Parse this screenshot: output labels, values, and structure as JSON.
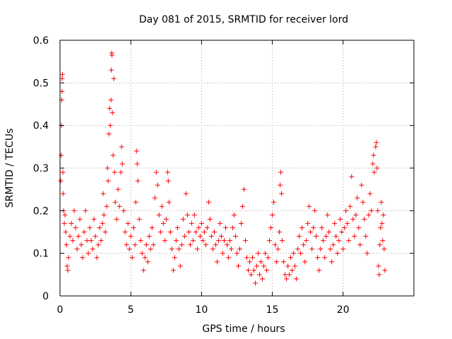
{
  "chart_data": {
    "type": "scatter",
    "title": "Day 081 of 2015, SRMTID for receiver lord",
    "xlabel": "GPS time / hours",
    "ylabel": "SRMTID / TECUs",
    "xlim": [
      0,
      25
    ],
    "ylim": [
      0,
      0.6
    ],
    "x_ticks": [
      0,
      5,
      10,
      15,
      20
    ],
    "y_ticks": [
      0,
      0.1,
      0.2,
      0.3,
      0.4,
      0.5,
      0.6
    ],
    "x_tick_labels": [
      "0",
      "5",
      "10",
      "15",
      "20"
    ],
    "y_tick_labels": [
      "0",
      "0.1",
      "0.2",
      "0.3",
      "0.4",
      "0.5",
      "0.6"
    ],
    "grid": true,
    "marker": "plus",
    "series": [
      {
        "name": "SRMTID",
        "color": "#ff0000",
        "points": [
          [
            0.05,
            0.27
          ],
          [
            0.08,
            0.33
          ],
          [
            0.1,
            0.4
          ],
          [
            0.12,
            0.46
          ],
          [
            0.14,
            0.48
          ],
          [
            0.15,
            0.51
          ],
          [
            0.17,
            0.52
          ],
          [
            0.2,
            0.29
          ],
          [
            0.22,
            0.24
          ],
          [
            0.25,
            0.2
          ],
          [
            0.3,
            0.17
          ],
          [
            0.35,
            0.19
          ],
          [
            0.4,
            0.15
          ],
          [
            0.45,
            0.12
          ],
          [
            0.5,
            0.07
          ],
          [
            0.55,
            0.06
          ],
          [
            0.6,
            0.09
          ],
          [
            0.7,
            0.14
          ],
          [
            0.8,
            0.17
          ],
          [
            0.9,
            0.13
          ],
          [
            1.0,
            0.2
          ],
          [
            1.1,
            0.16
          ],
          [
            1.2,
            0.11
          ],
          [
            1.3,
            0.14
          ],
          [
            1.4,
            0.18
          ],
          [
            1.5,
            0.12
          ],
          [
            1.6,
            0.09
          ],
          [
            1.7,
            0.15
          ],
          [
            1.8,
            0.2
          ],
          [
            1.9,
            0.13
          ],
          [
            2.0,
            0.1
          ],
          [
            2.1,
            0.16
          ],
          [
            2.2,
            0.13
          ],
          [
            2.3,
            0.11
          ],
          [
            2.4,
            0.18
          ],
          [
            2.5,
            0.14
          ],
          [
            2.6,
            0.09
          ],
          [
            2.7,
            0.12
          ],
          [
            2.8,
            0.16
          ],
          [
            2.9,
            0.13
          ],
          [
            3.0,
            0.17
          ],
          [
            3.05,
            0.24
          ],
          [
            3.1,
            0.19
          ],
          [
            3.2,
            0.15
          ],
          [
            3.3,
            0.21
          ],
          [
            3.35,
            0.3
          ],
          [
            3.4,
            0.27
          ],
          [
            3.45,
            0.38
          ],
          [
            3.5,
            0.44
          ],
          [
            3.55,
            0.4
          ],
          [
            3.6,
            0.46
          ],
          [
            3.62,
            0.53
          ],
          [
            3.65,
            0.57
          ],
          [
            3.67,
            0.565
          ],
          [
            3.7,
            0.43
          ],
          [
            3.75,
            0.33
          ],
          [
            3.8,
            0.51
          ],
          [
            3.85,
            0.29
          ],
          [
            3.9,
            0.22
          ],
          [
            4.0,
            0.18
          ],
          [
            4.1,
            0.25
          ],
          [
            4.2,
            0.21
          ],
          [
            4.3,
            0.29
          ],
          [
            4.35,
            0.35
          ],
          [
            4.4,
            0.31
          ],
          [
            4.5,
            0.2
          ],
          [
            4.6,
            0.15
          ],
          [
            4.7,
            0.12
          ],
          [
            4.8,
            0.17
          ],
          [
            4.9,
            0.11
          ],
          [
            5.0,
            0.14
          ],
          [
            5.1,
            0.09
          ],
          [
            5.2,
            0.16
          ],
          [
            5.3,
            0.12
          ],
          [
            5.35,
            0.22
          ],
          [
            5.4,
            0.34
          ],
          [
            5.45,
            0.31
          ],
          [
            5.5,
            0.27
          ],
          [
            5.6,
            0.18
          ],
          [
            5.7,
            0.13
          ],
          [
            5.8,
            0.1
          ],
          [
            5.9,
            0.06
          ],
          [
            6.0,
            0.09
          ],
          [
            6.1,
            0.12
          ],
          [
            6.2,
            0.08
          ],
          [
            6.3,
            0.14
          ],
          [
            6.4,
            0.11
          ],
          [
            6.5,
            0.16
          ],
          [
            6.6,
            0.12
          ],
          [
            6.7,
            0.23
          ],
          [
            6.8,
            0.29
          ],
          [
            6.9,
            0.26
          ],
          [
            7.0,
            0.19
          ],
          [
            7.1,
            0.15
          ],
          [
            7.2,
            0.21
          ],
          [
            7.3,
            0.17
          ],
          [
            7.4,
            0.13
          ],
          [
            7.5,
            0.18
          ],
          [
            7.6,
            0.29
          ],
          [
            7.65,
            0.27
          ],
          [
            7.7,
            0.22
          ],
          [
            7.8,
            0.15
          ],
          [
            7.9,
            0.11
          ],
          [
            8.0,
            0.06
          ],
          [
            8.1,
            0.09
          ],
          [
            8.2,
            0.13
          ],
          [
            8.3,
            0.16
          ],
          [
            8.4,
            0.11
          ],
          [
            8.5,
            0.07
          ],
          [
            8.6,
            0.12
          ],
          [
            8.7,
            0.18
          ],
          [
            8.8,
            0.14
          ],
          [
            8.9,
            0.24
          ],
          [
            9.0,
            0.19
          ],
          [
            9.1,
            0.15
          ],
          [
            9.2,
            0.12
          ],
          [
            9.3,
            0.17
          ],
          [
            9.4,
            0.13
          ],
          [
            9.5,
            0.19
          ],
          [
            9.6,
            0.15
          ],
          [
            9.7,
            0.11
          ],
          [
            9.8,
            0.16
          ],
          [
            9.9,
            0.14
          ],
          [
            10.0,
            0.17
          ],
          [
            10.1,
            0.13
          ],
          [
            10.2,
            0.15
          ],
          [
            10.3,
            0.12
          ],
          [
            10.4,
            0.16
          ],
          [
            10.5,
            0.22
          ],
          [
            10.6,
            0.18
          ],
          [
            10.7,
            0.14
          ],
          [
            10.8,
            0.11
          ],
          [
            10.9,
            0.15
          ],
          [
            11.0,
            0.12
          ],
          [
            11.1,
            0.08
          ],
          [
            11.2,
            0.13
          ],
          [
            11.3,
            0.17
          ],
          [
            11.4,
            0.14
          ],
          [
            11.5,
            0.1
          ],
          [
            11.6,
            0.13
          ],
          [
            11.7,
            0.16
          ],
          [
            11.8,
            0.12
          ],
          [
            11.9,
            0.09
          ],
          [
            12.0,
            0.13
          ],
          [
            12.1,
            0.11
          ],
          [
            12.2,
            0.16
          ],
          [
            12.3,
            0.19
          ],
          [
            12.4,
            0.14
          ],
          [
            12.5,
            0.1
          ],
          [
            12.6,
            0.07
          ],
          [
            12.7,
            0.11
          ],
          [
            12.8,
            0.17
          ],
          [
            12.9,
            0.21
          ],
          [
            13.0,
            0.25
          ],
          [
            13.1,
            0.13
          ],
          [
            13.2,
            0.09
          ],
          [
            13.3,
            0.06
          ],
          [
            13.4,
            0.08
          ],
          [
            13.5,
            0.05
          ],
          [
            13.6,
            0.09
          ],
          [
            13.7,
            0.06
          ],
          [
            13.8,
            0.03
          ],
          [
            13.9,
            0.07
          ],
          [
            14.0,
            0.1
          ],
          [
            14.1,
            0.05
          ],
          [
            14.2,
            0.08
          ],
          [
            14.3,
            0.04
          ],
          [
            14.4,
            0.07
          ],
          [
            14.5,
            0.1
          ],
          [
            14.6,
            0.06
          ],
          [
            14.7,
            0.09
          ],
          [
            14.8,
            0.13
          ],
          [
            14.9,
            0.16
          ],
          [
            15.0,
            0.19
          ],
          [
            15.1,
            0.22
          ],
          [
            15.2,
            0.12
          ],
          [
            15.3,
            0.08
          ],
          [
            15.4,
            0.11
          ],
          [
            15.5,
            0.15
          ],
          [
            15.55,
            0.26
          ],
          [
            15.6,
            0.29
          ],
          [
            15.65,
            0.24
          ],
          [
            15.7,
            0.13
          ],
          [
            15.8,
            0.08
          ],
          [
            15.9,
            0.05
          ],
          [
            16.0,
            0.04
          ],
          [
            16.1,
            0.07
          ],
          [
            16.2,
            0.05
          ],
          [
            16.3,
            0.09
          ],
          [
            16.4,
            0.06
          ],
          [
            16.5,
            0.1
          ],
          [
            16.6,
            0.07
          ],
          [
            16.7,
            0.04
          ],
          [
            16.8,
            0.11
          ],
          [
            16.9,
            0.14
          ],
          [
            17.0,
            0.1
          ],
          [
            17.1,
            0.16
          ],
          [
            17.2,
            0.12
          ],
          [
            17.3,
            0.08
          ],
          [
            17.4,
            0.13
          ],
          [
            17.5,
            0.17
          ],
          [
            17.6,
            0.21
          ],
          [
            17.7,
            0.15
          ],
          [
            17.8,
            0.11
          ],
          [
            17.9,
            0.16
          ],
          [
            18.0,
            0.2
          ],
          [
            18.1,
            0.14
          ],
          [
            18.2,
            0.09
          ],
          [
            18.3,
            0.06
          ],
          [
            18.4,
            0.11
          ],
          [
            18.5,
            0.16
          ],
          [
            18.6,
            0.13
          ],
          [
            18.7,
            0.09
          ],
          [
            18.8,
            0.14
          ],
          [
            18.9,
            0.19
          ],
          [
            19.0,
            0.15
          ],
          [
            19.1,
            0.11
          ],
          [
            19.2,
            0.08
          ],
          [
            19.3,
            0.12
          ],
          [
            19.4,
            0.17
          ],
          [
            19.5,
            0.14
          ],
          [
            19.6,
            0.1
          ],
          [
            19.7,
            0.13
          ],
          [
            19.8,
            0.18
          ],
          [
            19.9,
            0.15
          ],
          [
            20.0,
            0.11
          ],
          [
            20.1,
            0.16
          ],
          [
            20.2,
            0.2
          ],
          [
            20.3,
            0.17
          ],
          [
            20.4,
            0.13
          ],
          [
            20.5,
            0.21
          ],
          [
            20.6,
            0.28
          ],
          [
            20.7,
            0.18
          ],
          [
            20.8,
            0.14
          ],
          [
            20.9,
            0.19
          ],
          [
            21.0,
            0.23
          ],
          [
            21.1,
            0.16
          ],
          [
            21.2,
            0.12
          ],
          [
            21.3,
            0.26
          ],
          [
            21.4,
            0.22
          ],
          [
            21.5,
            0.18
          ],
          [
            21.6,
            0.14
          ],
          [
            21.7,
            0.1
          ],
          [
            21.8,
            0.19
          ],
          [
            21.9,
            0.24
          ],
          [
            22.0,
            0.2
          ],
          [
            22.1,
            0.31
          ],
          [
            22.15,
            0.33
          ],
          [
            22.2,
            0.29
          ],
          [
            22.3,
            0.35
          ],
          [
            22.35,
            0.36
          ],
          [
            22.4,
            0.3
          ],
          [
            22.45,
            0.2
          ],
          [
            22.5,
            0.07
          ],
          [
            22.55,
            0.05
          ],
          [
            22.6,
            0.12
          ],
          [
            22.65,
            0.16
          ],
          [
            22.7,
            0.22
          ],
          [
            22.75,
            0.17
          ],
          [
            22.8,
            0.13
          ],
          [
            22.85,
            0.19
          ],
          [
            22.9,
            0.11
          ],
          [
            22.95,
            0.06
          ]
        ]
      }
    ]
  }
}
